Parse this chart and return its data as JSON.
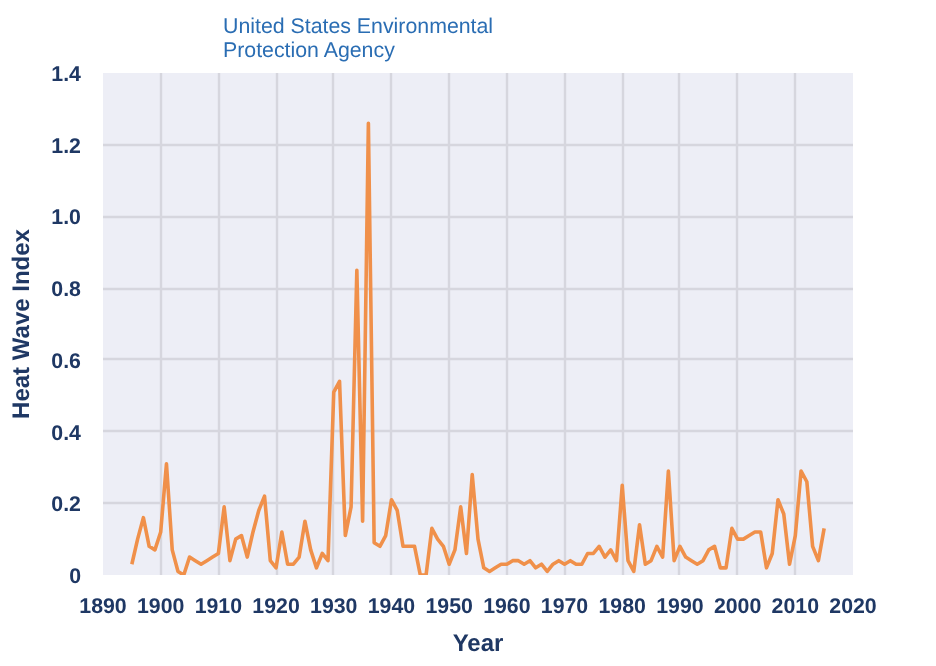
{
  "chart_data": {
    "type": "line",
    "xlabel": "Year",
    "ylabel": "Heat Wave Index",
    "annotations": [
      "United States Environmental\nProtection Agency"
    ],
    "x": [
      1895,
      1896,
      1897,
      1898,
      1899,
      1900,
      1901,
      1902,
      1903,
      1904,
      1905,
      1906,
      1907,
      1908,
      1909,
      1910,
      1911,
      1912,
      1913,
      1914,
      1915,
      1916,
      1917,
      1918,
      1919,
      1920,
      1921,
      1922,
      1923,
      1924,
      1925,
      1926,
      1927,
      1928,
      1929,
      1930,
      1931,
      1932,
      1933,
      1934,
      1935,
      1936,
      1937,
      1938,
      1939,
      1940,
      1941,
      1942,
      1943,
      1944,
      1945,
      1946,
      1947,
      1948,
      1949,
      1950,
      1951,
      1952,
      1953,
      1954,
      1955,
      1956,
      1957,
      1958,
      1959,
      1960,
      1961,
      1962,
      1963,
      1964,
      1965,
      1966,
      1967,
      1968,
      1969,
      1970,
      1971,
      1972,
      1973,
      1974,
      1975,
      1976,
      1977,
      1978,
      1979,
      1980,
      1981,
      1982,
      1983,
      1984,
      1985,
      1986,
      1987,
      1988,
      1989,
      1990,
      1991,
      1992,
      1993,
      1994,
      1995,
      1996,
      1997,
      1998,
      1999,
      2000,
      2001,
      2002,
      2003,
      2004,
      2005,
      2006,
      2007,
      2008,
      2009,
      2010,
      2011,
      2012,
      2013,
      2014,
      2015
    ],
    "series": [
      {
        "color": "#f0904a",
        "values": [
          0.03,
          0.1,
          0.16,
          0.08,
          0.07,
          0.12,
          0.31,
          0.07,
          0.01,
          0.0,
          0.05,
          0.04,
          0.03,
          0.04,
          0.05,
          0.06,
          0.19,
          0.04,
          0.1,
          0.11,
          0.05,
          0.12,
          0.18,
          0.22,
          0.04,
          0.02,
          0.12,
          0.03,
          0.03,
          0.05,
          0.15,
          0.07,
          0.02,
          0.06,
          0.04,
          0.51,
          0.54,
          0.11,
          0.19,
          0.85,
          0.15,
          1.26,
          0.09,
          0.08,
          0.11,
          0.21,
          0.18,
          0.08,
          0.08,
          0.08,
          0.0,
          0.0,
          0.13,
          0.1,
          0.08,
          0.03,
          0.07,
          0.19,
          0.06,
          0.28,
          0.1,
          0.02,
          0.01,
          0.02,
          0.03,
          0.03,
          0.04,
          0.04,
          0.03,
          0.04,
          0.02,
          0.03,
          0.01,
          0.03,
          0.04,
          0.03,
          0.04,
          0.03,
          0.03,
          0.06,
          0.06,
          0.08,
          0.05,
          0.07,
          0.04,
          0.25,
          0.04,
          0.01,
          0.14,
          0.03,
          0.04,
          0.08,
          0.05,
          0.29,
          0.04,
          0.08,
          0.05,
          0.04,
          0.03,
          0.04,
          0.07,
          0.08,
          0.02,
          0.02,
          0.13,
          0.1,
          0.1,
          0.11,
          0.12,
          0.12,
          0.02,
          0.06,
          0.21,
          0.17,
          0.03,
          0.11,
          0.29,
          0.26,
          0.08,
          0.04,
          0.13
        ]
      }
    ],
    "xlim": [
      1890,
      2020
    ],
    "xticks": [
      1890,
      1900,
      1910,
      1920,
      1930,
      1940,
      1950,
      1960,
      1970,
      1980,
      1990,
      2000,
      2010,
      2020
    ],
    "ylim": [
      0,
      1.4
    ],
    "yticks": [
      0,
      0.2,
      0.4,
      0.6,
      0.8,
      {
        "value": 1,
        "label": "1.0"
      },
      1.2,
      1.4
    ],
    "grid": true
  }
}
